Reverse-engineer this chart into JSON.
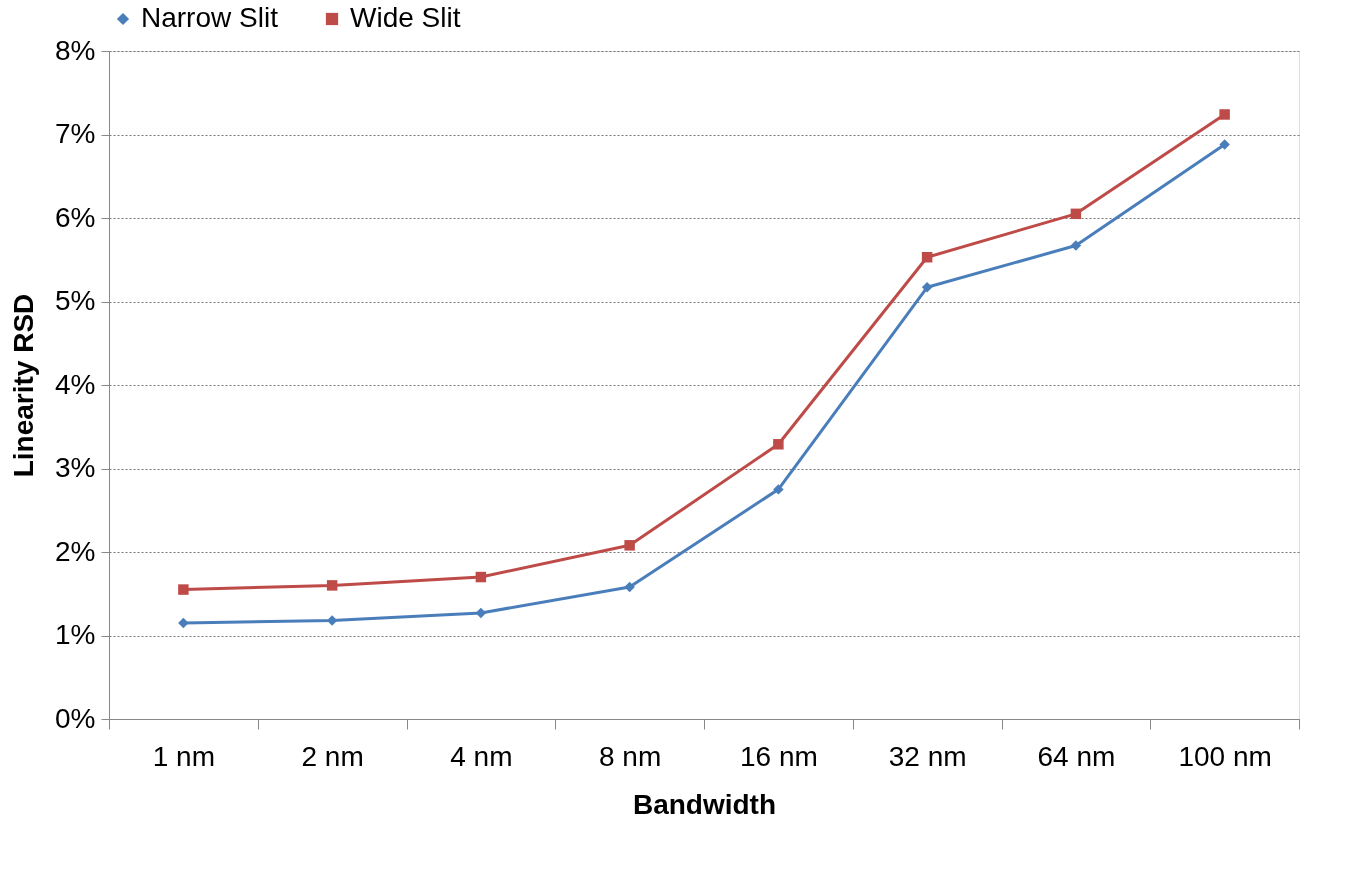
{
  "chart_data": {
    "type": "line",
    "xlabel": "Bandwidth",
    "ylabel": "Linearity RSD",
    "categories": [
      "1 nm",
      "2 nm",
      "4 nm",
      "8 nm",
      "16 nm",
      "32 nm",
      "64 nm",
      "100 nm"
    ],
    "series": [
      {
        "name": "Narrow Slit",
        "color": "#4a7ebb",
        "marker": "diamond",
        "values": [
          1.15,
          1.18,
          1.27,
          1.58,
          2.75,
          5.17,
          5.67,
          6.88
        ]
      },
      {
        "name": "Wide Slit",
        "color": "#be4b48",
        "marker": "square",
        "values": [
          1.55,
          1.6,
          1.7,
          2.08,
          3.29,
          5.53,
          6.05,
          7.24
        ]
      }
    ],
    "ylim": [
      0,
      8
    ],
    "yticks": [
      {
        "value": 0,
        "label": "0%"
      },
      {
        "value": 1,
        "label": "1%"
      },
      {
        "value": 2,
        "label": "2%"
      },
      {
        "value": 3,
        "label": "3%"
      },
      {
        "value": 4,
        "label": "4%"
      },
      {
        "value": 5,
        "label": "5%"
      },
      {
        "value": 6,
        "label": "6%"
      },
      {
        "value": 7,
        "label": "7%"
      },
      {
        "value": 8,
        "label": "8%"
      }
    ],
    "grid": "y",
    "legend": "top",
    "line_style": "solid"
  }
}
